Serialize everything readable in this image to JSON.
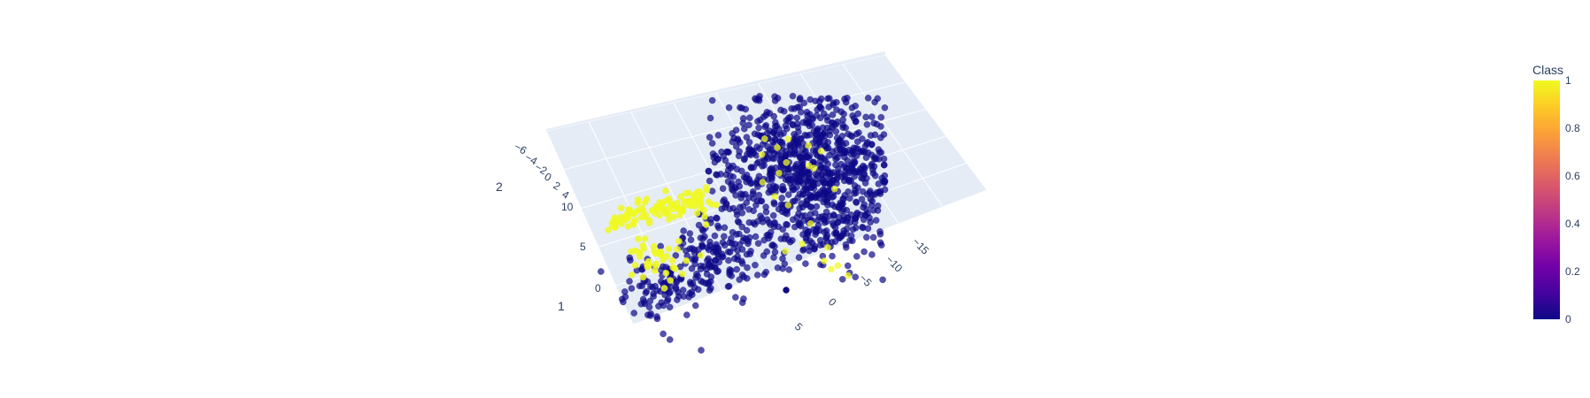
{
  "chart_data": {
    "type": "scatter",
    "subtype": "3d-scatter",
    "axes": {
      "x_ticks": [
        "5",
        "0",
        "−5",
        "−10",
        "−15"
      ],
      "y_ticks": [
        "0",
        "5",
        "10"
      ],
      "z_ticks": [
        "−6",
        "−4",
        "−2",
        "0",
        "2",
        "4"
      ],
      "extra_labels": [
        "2",
        "1"
      ]
    },
    "colorbar": {
      "title": "Class",
      "ticks": [
        "0",
        "0.2",
        "0.4",
        "0.6",
        "0.8",
        "1"
      ],
      "range": [
        0,
        1
      ],
      "colorscale": [
        "#0d0887",
        "#46039f",
        "#7201a8",
        "#9c179e",
        "#bd3786",
        "#d8576b",
        "#ed7953",
        "#fb9f3a",
        "#fdca26",
        "#f0f921"
      ]
    },
    "series": [
      {
        "class": 0,
        "color": "#0d0887",
        "approx_count": 1400,
        "description_region": "main-cloud"
      },
      {
        "class": 1,
        "color": "#f0f921",
        "approx_count": 160,
        "description_region": "left-cluster"
      }
    ],
    "scene_background": "#e5ecf6",
    "grid": true
  }
}
